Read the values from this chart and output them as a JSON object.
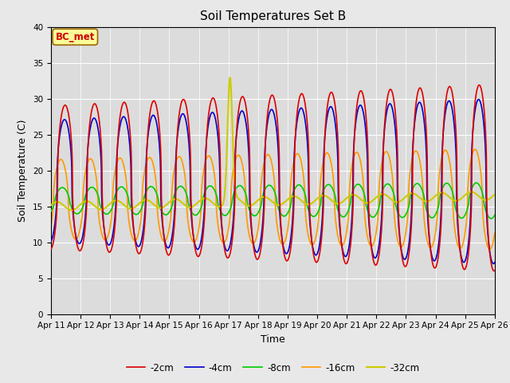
{
  "title": "Soil Temperatures Set B",
  "xlabel": "Time",
  "ylabel": "Soil Temperature (C)",
  "annotation_text": "BC_met",
  "annotation_color": "#cc0000",
  "annotation_bg": "#ffff99",
  "ylim": [
    0,
    40
  ],
  "yticks": [
    0,
    5,
    10,
    15,
    20,
    25,
    30,
    35,
    40
  ],
  "series": {
    "-2cm": {
      "color": "#dd0000",
      "lw": 1.2
    },
    "-4cm": {
      "color": "#0000cc",
      "lw": 1.2
    },
    "-8cm": {
      "color": "#00cc00",
      "lw": 1.2
    },
    "-16cm": {
      "color": "#ff9900",
      "lw": 1.2
    },
    "-32cm": {
      "color": "#cccc00",
      "lw": 1.5
    }
  },
  "bg_color": "#e8e8e8",
  "plot_bg_color": "#dcdcdc",
  "grid_color": "#ffffff",
  "x_start": 0,
  "x_end": 15,
  "x_tick_labels": [
    "Apr 11",
    "Apr 12",
    "Apr 13",
    "Apr 14",
    "Apr 15",
    "Apr 16",
    "Apr 17",
    "Apr 18",
    "Apr 19",
    "Apr 20",
    "Apr 21",
    "Apr 22",
    "Apr 23",
    "Apr 24",
    "Apr 25",
    "Apr 26"
  ],
  "x_tick_positions": [
    0,
    1,
    2,
    3,
    4,
    5,
    6,
    7,
    8,
    9,
    10,
    11,
    12,
    13,
    14,
    15
  ]
}
